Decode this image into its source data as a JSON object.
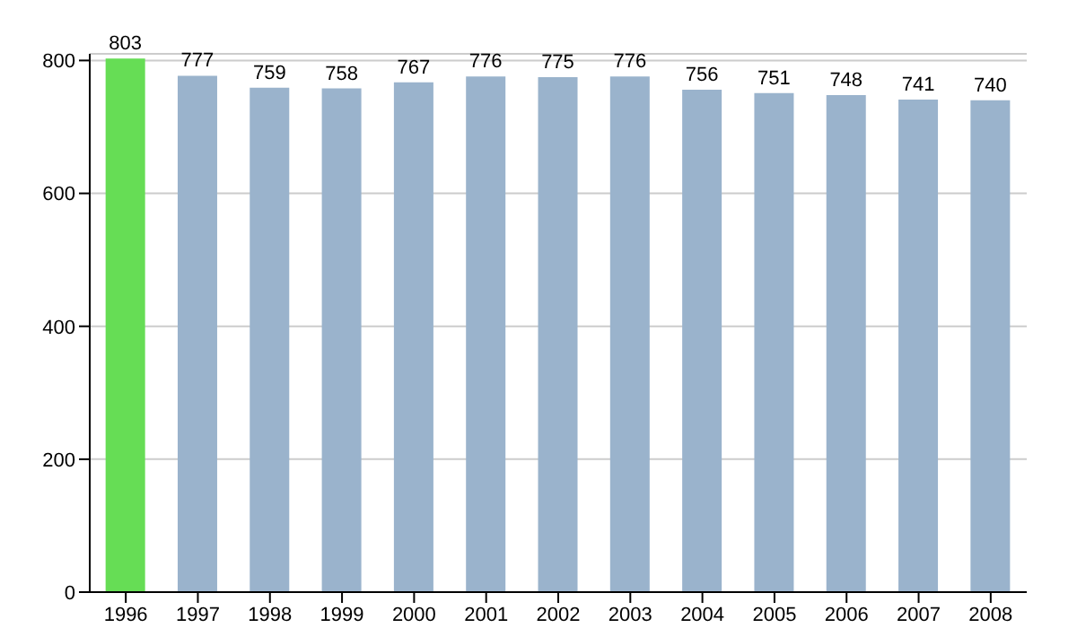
{
  "chart_data": {
    "type": "bar",
    "categories": [
      "1996",
      "1997",
      "1998",
      "1999",
      "2000",
      "2001",
      "2002",
      "2003",
      "2004",
      "2005",
      "2006",
      "2007",
      "2008"
    ],
    "values": [
      803,
      777,
      759,
      758,
      767,
      776,
      775,
      776,
      756,
      751,
      748,
      741,
      740
    ],
    "colors": [
      "#66dd55",
      "#9ab3cc",
      "#9ab3cc",
      "#9ab3cc",
      "#9ab3cc",
      "#9ab3cc",
      "#9ab3cc",
      "#9ab3cc",
      "#9ab3cc",
      "#9ab3cc",
      "#9ab3cc",
      "#9ab3cc",
      "#9ab3cc"
    ],
    "ylim": [
      0,
      810
    ],
    "yticks": [
      0,
      200,
      400,
      600,
      800
    ],
    "grid": "y",
    "data_labels": true
  }
}
